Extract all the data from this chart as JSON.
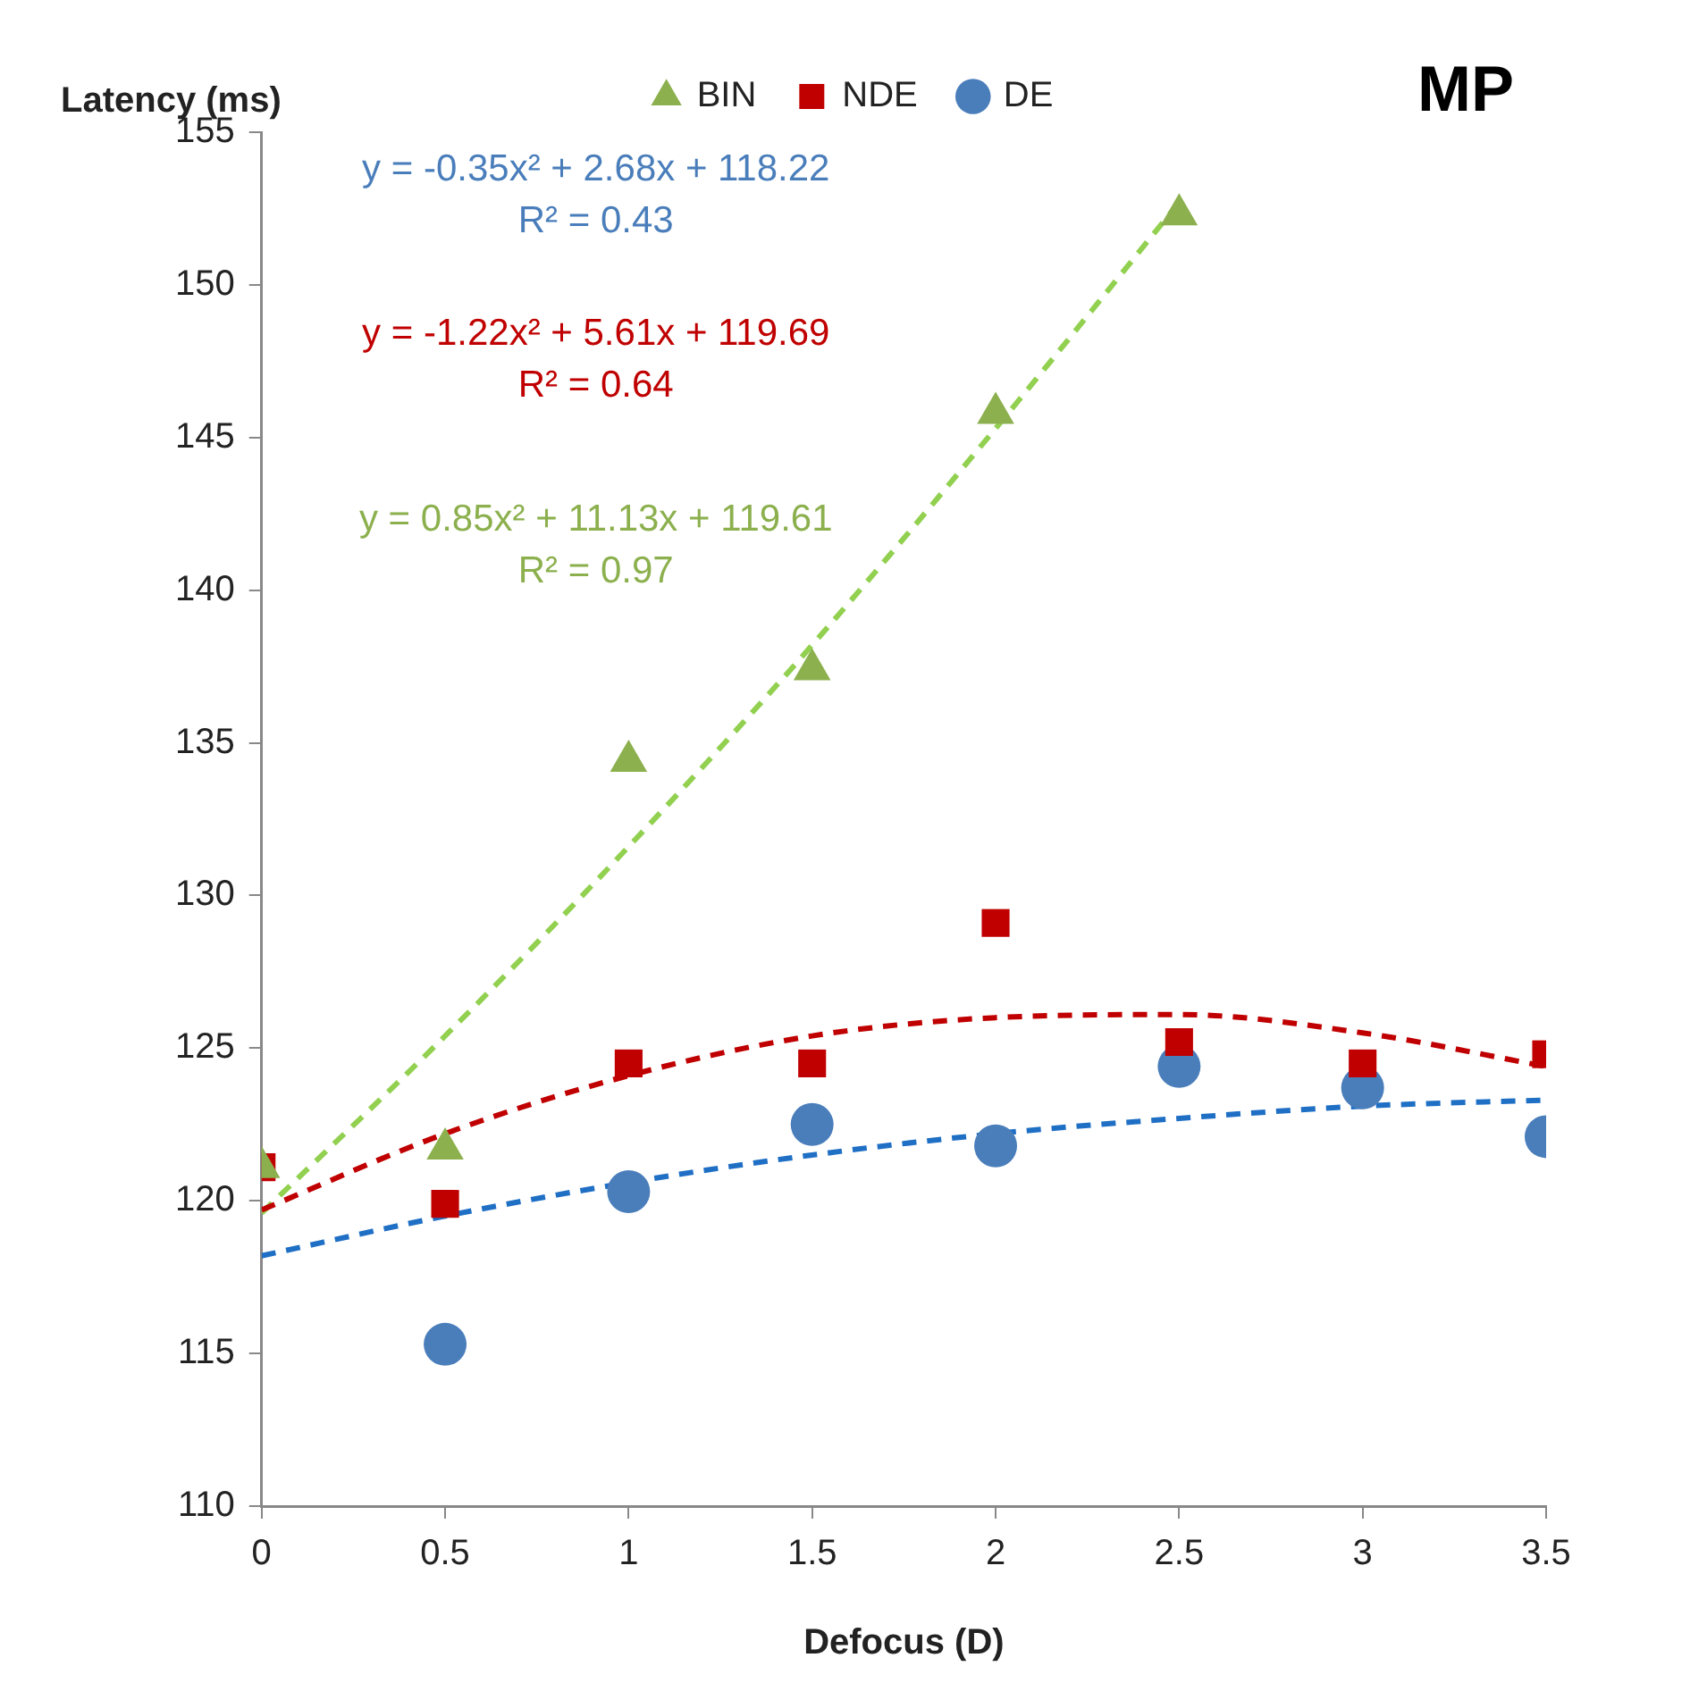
{
  "chart_data": {
    "type": "scatter",
    "xlabel": "Defocus (D)",
    "ylabel": "Latency (ms)",
    "legend": "top",
    "grid": false,
    "xlim": [
      0,
      3.5
    ],
    "xticks": [
      0,
      0.5,
      1,
      1.5,
      2,
      2.5,
      3,
      3.5
    ],
    "ylim": [
      110,
      155
    ],
    "yticks": [
      110,
      115,
      120,
      125,
      130,
      135,
      140,
      145,
      150,
      155
    ],
    "series": [
      {
        "name": "DE",
        "color": "#4a7ebb",
        "marker": "circle",
        "x": [
          0.5,
          1,
          1.5,
          2,
          2.5,
          3,
          3.5
        ],
        "values": [
          115.3,
          120.3,
          122.5,
          121.8,
          124.4,
          123.7,
          122.1
        ]
      },
      {
        "name": "NDE",
        "color": "#c00000",
        "marker": "square",
        "x": [
          0,
          0.5,
          1,
          1.5,
          2,
          2.5,
          3,
          3.5
        ],
        "values": [
          121.1,
          119.9,
          124.5,
          124.5,
          129.1,
          125.2,
          124.5,
          124.8
        ]
      },
      {
        "name": "BIN",
        "color": "#8cb04e",
        "marker": "triangle",
        "x": [
          0,
          0.5,
          1,
          1.5,
          2,
          2.5
        ],
        "values": [
          121.1,
          121.7,
          134.4,
          137.4,
          145.8,
          152.3
        ]
      },
      {
        "type": "line",
        "color": "#1f6fc5",
        "marker": "none",
        "line_style": "dashed",
        "x": [
          0,
          0.5,
          1,
          1.5,
          2,
          2.5,
          3,
          3.5
        ],
        "values": [
          118.2,
          119.5,
          120.6,
          121.5,
          122.2,
          122.7,
          123.1,
          123.3
        ]
      },
      {
        "type": "line",
        "color": "#c00000",
        "marker": "none",
        "line_style": "dashed",
        "x": [
          0,
          0.5,
          1,
          1.5,
          2,
          2.5,
          3,
          3.5
        ],
        "values": [
          119.7,
          122.2,
          124.1,
          125.4,
          126.0,
          126.1,
          125.5,
          124.4
        ]
      },
      {
        "type": "line",
        "color": "#92d050",
        "marker": "none",
        "line_style": "dashed",
        "x": [
          0,
          0.5,
          1,
          1.5,
          2,
          2.5
        ],
        "values": [
          119.6,
          125.4,
          131.6,
          138.2,
          145.3,
          152.7
        ]
      }
    ],
    "annotations": [
      "y = -0.35x² + 2.68x + 118.22\nR² = 0.43",
      "y = -1.22x² + 5.61x + 119.69\nR² = 0.64",
      "y = 0.85x² + 11.13x + 119.61\nR² = 0.97",
      "MP"
    ]
  }
}
